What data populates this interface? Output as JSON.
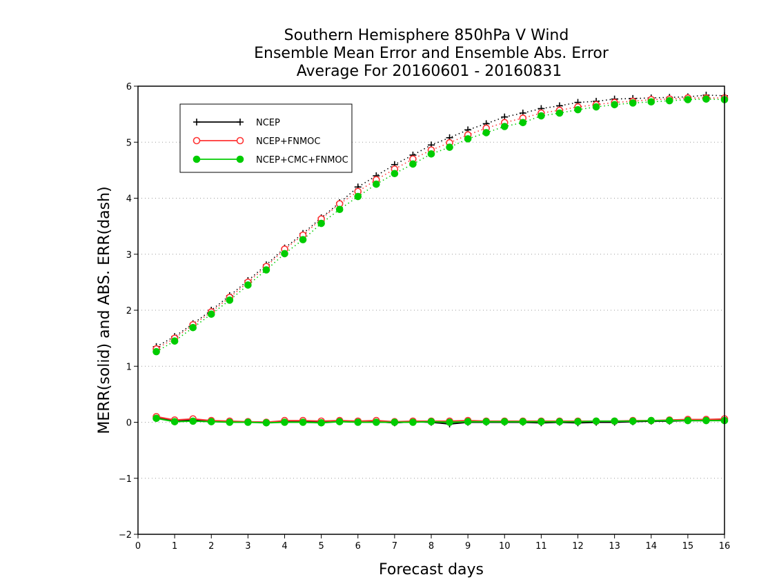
{
  "chart_data": {
    "type": "line",
    "title_lines": [
      "Southern Hemisphere 850hPa V Wind",
      "Ensemble Mean Error and Ensemble Abs. Error",
      "Average For 20160601 - 20160831"
    ],
    "xlabel": "Forecast days",
    "ylabel": "MERR(solid) and ABS. ERR(dash)",
    "xlim": [
      0,
      16
    ],
    "ylim": [
      -2,
      6
    ],
    "x_ticks": [
      "0",
      "1",
      "2",
      "3",
      "4",
      "5",
      "6",
      "7",
      "8",
      "9",
      "10",
      "11",
      "12",
      "13",
      "14",
      "15",
      "16"
    ],
    "y_ticks": [
      "-2",
      "-1",
      "0",
      "1",
      "2",
      "3",
      "4",
      "5",
      "6"
    ],
    "grid": "horizontal dotted",
    "legend_position": "top-left",
    "x": [
      0.5,
      1,
      1.5,
      2,
      2.5,
      3,
      3.5,
      4,
      4.5,
      5,
      5.5,
      6,
      6.5,
      7,
      7.5,
      8,
      8.5,
      9,
      9.5,
      10,
      10.5,
      11,
      11.5,
      12,
      12.5,
      13,
      13.5,
      14,
      14.5,
      15,
      15.5,
      16
    ],
    "series": [
      {
        "name": "NCEP",
        "color": "#000000",
        "marker": "plus",
        "merr": [
          0.08,
          0.03,
          0.04,
          0.02,
          0.01,
          0.01,
          0.0,
          0.02,
          0.02,
          0.01,
          0.02,
          0.01,
          0.01,
          -0.01,
          0.01,
          0.0,
          -0.03,
          0.0,
          0.0,
          0.0,
          0.0,
          -0.01,
          0.0,
          -0.01,
          0.0,
          0.0,
          0.01,
          0.02,
          0.02,
          0.03,
          0.03,
          0.04
        ],
        "abs_err": [
          1.35,
          1.53,
          1.76,
          2.0,
          2.26,
          2.53,
          2.81,
          3.11,
          3.37,
          3.65,
          3.92,
          4.2,
          4.4,
          4.6,
          4.77,
          4.95,
          5.08,
          5.22,
          5.33,
          5.45,
          5.52,
          5.6,
          5.65,
          5.71,
          5.73,
          5.77,
          5.78,
          5.79,
          5.8,
          5.81,
          5.84,
          5.83
        ]
      },
      {
        "name": "NCEP+FNMOC",
        "color": "#ff3333",
        "marker": "open-circle",
        "merr": [
          0.1,
          0.04,
          0.06,
          0.03,
          0.02,
          0.01,
          0.0,
          0.03,
          0.03,
          0.02,
          0.03,
          0.02,
          0.03,
          0.01,
          0.02,
          0.02,
          0.02,
          0.03,
          0.02,
          0.02,
          0.02,
          0.02,
          0.02,
          0.02,
          0.02,
          0.02,
          0.03,
          0.03,
          0.04,
          0.05,
          0.05,
          0.06
        ],
        "abs_err": [
          1.31,
          1.5,
          1.74,
          1.97,
          2.23,
          2.5,
          2.78,
          3.09,
          3.34,
          3.63,
          3.9,
          4.12,
          4.33,
          4.52,
          4.7,
          4.86,
          4.99,
          5.13,
          5.25,
          5.35,
          5.43,
          5.52,
          5.57,
          5.63,
          5.67,
          5.71,
          5.73,
          5.76,
          5.77,
          5.79,
          5.79,
          5.79
        ]
      },
      {
        "name": "NCEP+CMC+FNMOC",
        "color": "#00cc00",
        "marker": "filled-circle",
        "merr": [
          0.07,
          0.01,
          0.02,
          0.01,
          0.0,
          0.0,
          -0.01,
          0.0,
          0.0,
          -0.01,
          0.01,
          0.0,
          0.0,
          0.0,
          0.0,
          0.01,
          0.0,
          0.01,
          0.01,
          0.01,
          0.01,
          0.01,
          0.01,
          0.01,
          0.02,
          0.02,
          0.02,
          0.03,
          0.03,
          0.03,
          0.03,
          0.03
        ],
        "abs_err": [
          1.26,
          1.45,
          1.69,
          1.93,
          2.18,
          2.45,
          2.72,
          3.01,
          3.26,
          3.55,
          3.8,
          4.03,
          4.25,
          4.44,
          4.61,
          4.79,
          4.91,
          5.06,
          5.17,
          5.28,
          5.35,
          5.47,
          5.52,
          5.58,
          5.63,
          5.67,
          5.7,
          5.72,
          5.74,
          5.76,
          5.77,
          5.76
        ]
      }
    ]
  }
}
